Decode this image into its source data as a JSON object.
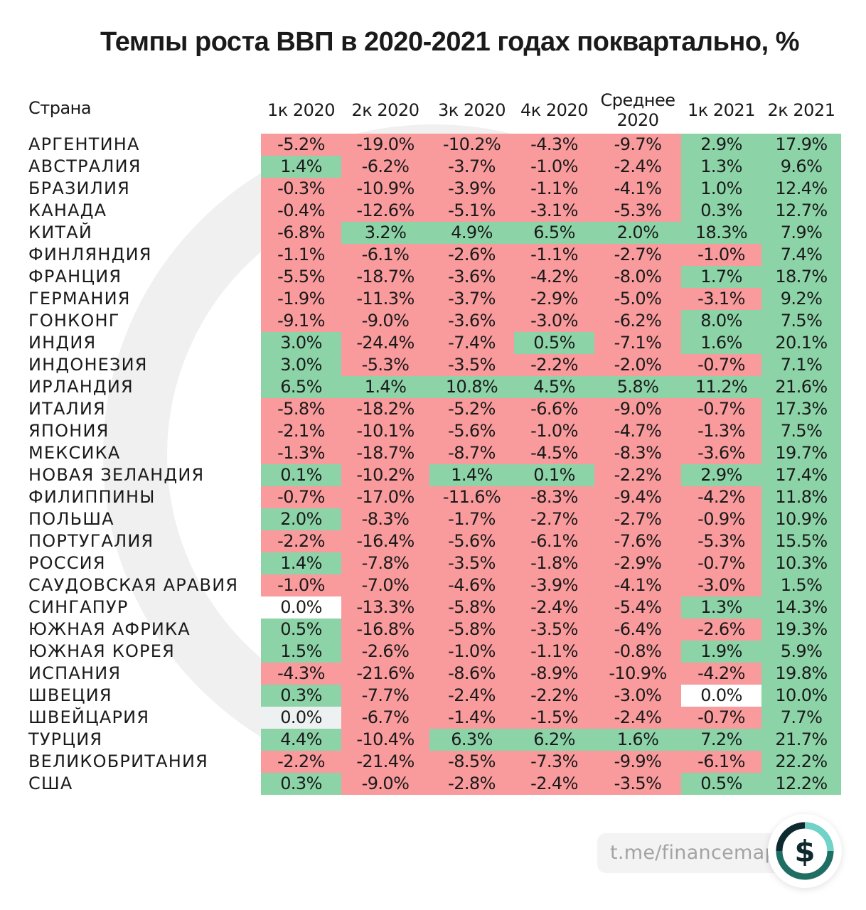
{
  "title": "Темпы роста ВВП в 2020-2021 годах поквартально, %",
  "brand": {
    "text": "t.me/financemap",
    "icon": "dollar-icon"
  },
  "colors": {
    "negative": "#f99a9c",
    "positive": "#8cd4a8",
    "zero": "#ffffff"
  },
  "chart_data": {
    "type": "table",
    "title": "Темпы роста ВВП в 2020-2021 годах поквартально, %",
    "row_header": "Страна",
    "columns": [
      "1к 2020",
      "2к 2020",
      "3к 2020",
      "4к 2020",
      "Среднее\n2020",
      "1к 2021",
      "2к 2021"
    ],
    "rows": [
      {
        "country": "АРГЕНТИНА",
        "values": [
          "-5.2%",
          "-19.0%",
          "-10.2%",
          "-4.3%",
          "-9.7%",
          "2.9%",
          "17.9%"
        ]
      },
      {
        "country": "АВСТРАЛИЯ",
        "values": [
          "1.4%",
          "-6.2%",
          "-3.7%",
          "-1.0%",
          "-2.4%",
          "1.3%",
          "9.6%"
        ]
      },
      {
        "country": "БРАЗИЛИЯ",
        "values": [
          "-0.3%",
          "-10.9%",
          "-3.9%",
          "-1.1%",
          "-4.1%",
          "1.0%",
          "12.4%"
        ]
      },
      {
        "country": "КАНАДА",
        "values": [
          "-0.4%",
          "-12.6%",
          "-5.1%",
          "-3.1%",
          "-5.3%",
          "0.3%",
          "12.7%"
        ]
      },
      {
        "country": "КИТАЙ",
        "values": [
          "-6.8%",
          "3.2%",
          "4.9%",
          "6.5%",
          "2.0%",
          "18.3%",
          "7.9%"
        ]
      },
      {
        "country": "ФИНЛЯНДИЯ",
        "values": [
          "-1.1%",
          "-6.1%",
          "-2.6%",
          "-1.1%",
          "-2.7%",
          "-1.0%",
          "7.4%"
        ]
      },
      {
        "country": "ФРАНЦИЯ",
        "values": [
          "-5.5%",
          "-18.7%",
          "-3.6%",
          "-4.2%",
          "-8.0%",
          "1.7%",
          "18.7%"
        ]
      },
      {
        "country": "ГЕРМАНИЯ",
        "values": [
          "-1.9%",
          "-11.3%",
          "-3.7%",
          "-2.9%",
          "-5.0%",
          "-3.1%",
          "9.2%"
        ]
      },
      {
        "country": "ГОНКОНГ",
        "values": [
          "-9.1%",
          "-9.0%",
          "-3.6%",
          "-3.0%",
          "-6.2%",
          "8.0%",
          "7.5%"
        ]
      },
      {
        "country": "ИНДИЯ",
        "values": [
          "3.0%",
          "-24.4%",
          "-7.4%",
          "0.5%",
          "-7.1%",
          "1.6%",
          "20.1%"
        ]
      },
      {
        "country": "ИНДОНЕЗИЯ",
        "values": [
          "3.0%",
          "-5.3%",
          "-3.5%",
          "-2.2%",
          "-2.0%",
          "-0.7%",
          "7.1%"
        ]
      },
      {
        "country": "ИРЛАНДИЯ",
        "values": [
          "6.5%",
          "1.4%",
          "10.8%",
          "4.5%",
          "5.8%",
          "11.2%",
          "21.6%"
        ]
      },
      {
        "country": "ИТАЛИЯ",
        "values": [
          "-5.8%",
          "-18.2%",
          "-5.2%",
          "-6.6%",
          "-9.0%",
          "-0.7%",
          "17.3%"
        ]
      },
      {
        "country": "ЯПОНИЯ",
        "values": [
          "-2.1%",
          "-10.1%",
          "-5.6%",
          "-1.0%",
          "-4.7%",
          "-1.3%",
          "7.5%"
        ]
      },
      {
        "country": "МЕКСИКА",
        "values": [
          "-1.3%",
          "-18.7%",
          "-8.7%",
          "-4.5%",
          "-8.3%",
          "-3.6%",
          "19.7%"
        ]
      },
      {
        "country": "НОВАЯ  ЗЕЛАНДИЯ",
        "values": [
          "0.1%",
          "-10.2%",
          "1.4%",
          "0.1%",
          "-2.2%",
          "2.9%",
          "17.4%"
        ]
      },
      {
        "country": "ФИЛИППИНЫ",
        "values": [
          "-0.7%",
          "-17.0%",
          "-11.6%",
          "-8.3%",
          "-9.4%",
          "-4.2%",
          "11.8%"
        ]
      },
      {
        "country": "ПОЛЬША",
        "values": [
          "2.0%",
          "-8.3%",
          "-1.7%",
          "-2.7%",
          "-2.7%",
          "-0.9%",
          "10.9%"
        ]
      },
      {
        "country": "ПОРТУГАЛИЯ",
        "values": [
          "-2.2%",
          "-16.4%",
          "-5.6%",
          "-6.1%",
          "-7.6%",
          "-5.3%",
          "15.5%"
        ]
      },
      {
        "country": "РОССИЯ",
        "values": [
          "1.4%",
          "-7.8%",
          "-3.5%",
          "-1.8%",
          "-2.9%",
          "-0.7%",
          "10.3%"
        ]
      },
      {
        "country": "САУДОВСКАЯ АРАВИЯ",
        "values": [
          "-1.0%",
          "-7.0%",
          "-4.6%",
          "-3.9%",
          "-4.1%",
          "-3.0%",
          "1.5%"
        ]
      },
      {
        "country": "СИНГАПУР",
        "values": [
          "0.0%",
          "-13.3%",
          "-5.8%",
          "-2.4%",
          "-5.4%",
          "1.3%",
          "14.3%"
        ]
      },
      {
        "country": "ЮЖНАЯ АФРИКА",
        "values": [
          "0.5%",
          "-16.8%",
          "-5.8%",
          "-3.5%",
          "-6.4%",
          "-2.6%",
          "19.3%"
        ]
      },
      {
        "country": "ЮЖНАЯ КОРЕЯ",
        "values": [
          "1.5%",
          "-2.6%",
          "-1.0%",
          "-1.1%",
          "-0.8%",
          "1.9%",
          "5.9%"
        ]
      },
      {
        "country": "ИСПАНИЯ",
        "values": [
          "-4.3%",
          "-21.6%",
          "-8.6%",
          "-8.9%",
          "-10.9%",
          "-4.2%",
          "19.8%"
        ]
      },
      {
        "country": "ШВЕЦИЯ",
        "values": [
          "0.3%",
          "-7.7%",
          "-2.4%",
          "-2.2%",
          "-3.0%",
          "0.0%",
          "10.0%"
        ]
      },
      {
        "country": "ШВЕЙЦАРИЯ",
        "values": [
          "0.0%",
          "-6.7%",
          "-1.4%",
          "-1.5%",
          "-2.4%",
          "-0.7%",
          "7.7%"
        ]
      },
      {
        "country": "ТУРЦИЯ",
        "values": [
          "4.4%",
          "-10.4%",
          "6.3%",
          "6.2%",
          "1.6%",
          "7.2%",
          "21.7%"
        ]
      },
      {
        "country": "ВЕЛИКОБРИТАНИЯ",
        "values": [
          "-2.2%",
          "-21.4%",
          "-8.5%",
          "-7.3%",
          "-9.9%",
          "-6.1%",
          "22.2%"
        ]
      },
      {
        "country": "США",
        "values": [
          "0.3%",
          "-9.0%",
          "-2.8%",
          "-2.4%",
          "-3.5%",
          "0.5%",
          "12.2%"
        ]
      }
    ]
  }
}
